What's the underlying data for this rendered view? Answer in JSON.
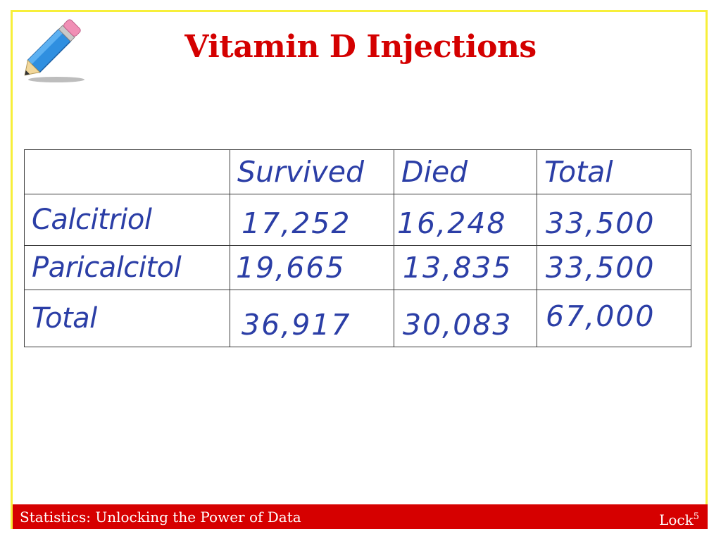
{
  "slide": {
    "title": "Vitamin D Injections",
    "accent_color": "#d40000",
    "frame_color": "#f7ef3a",
    "ink_color": "#2b3ea6"
  },
  "decor": {
    "icon": "pencil-icon"
  },
  "table": {
    "headers": [
      "",
      "Survived",
      "Died",
      "Total"
    ],
    "rows": [
      {
        "label": "Calcitriol",
        "survived": "17,252",
        "died": "16,248",
        "total": "33,500"
      },
      {
        "label": "Paricalcitol",
        "survived": "19,665",
        "died": "13,835",
        "total": "33,500"
      },
      {
        "label": "Total",
        "survived": "36,917",
        "died": "30,083",
        "total": "67,000"
      }
    ]
  },
  "footer": {
    "left_text": "Statistics: Unlocking the Power of Data",
    "right_text": "Lock",
    "right_superscript": "5",
    "bar_color": "#d60000"
  }
}
